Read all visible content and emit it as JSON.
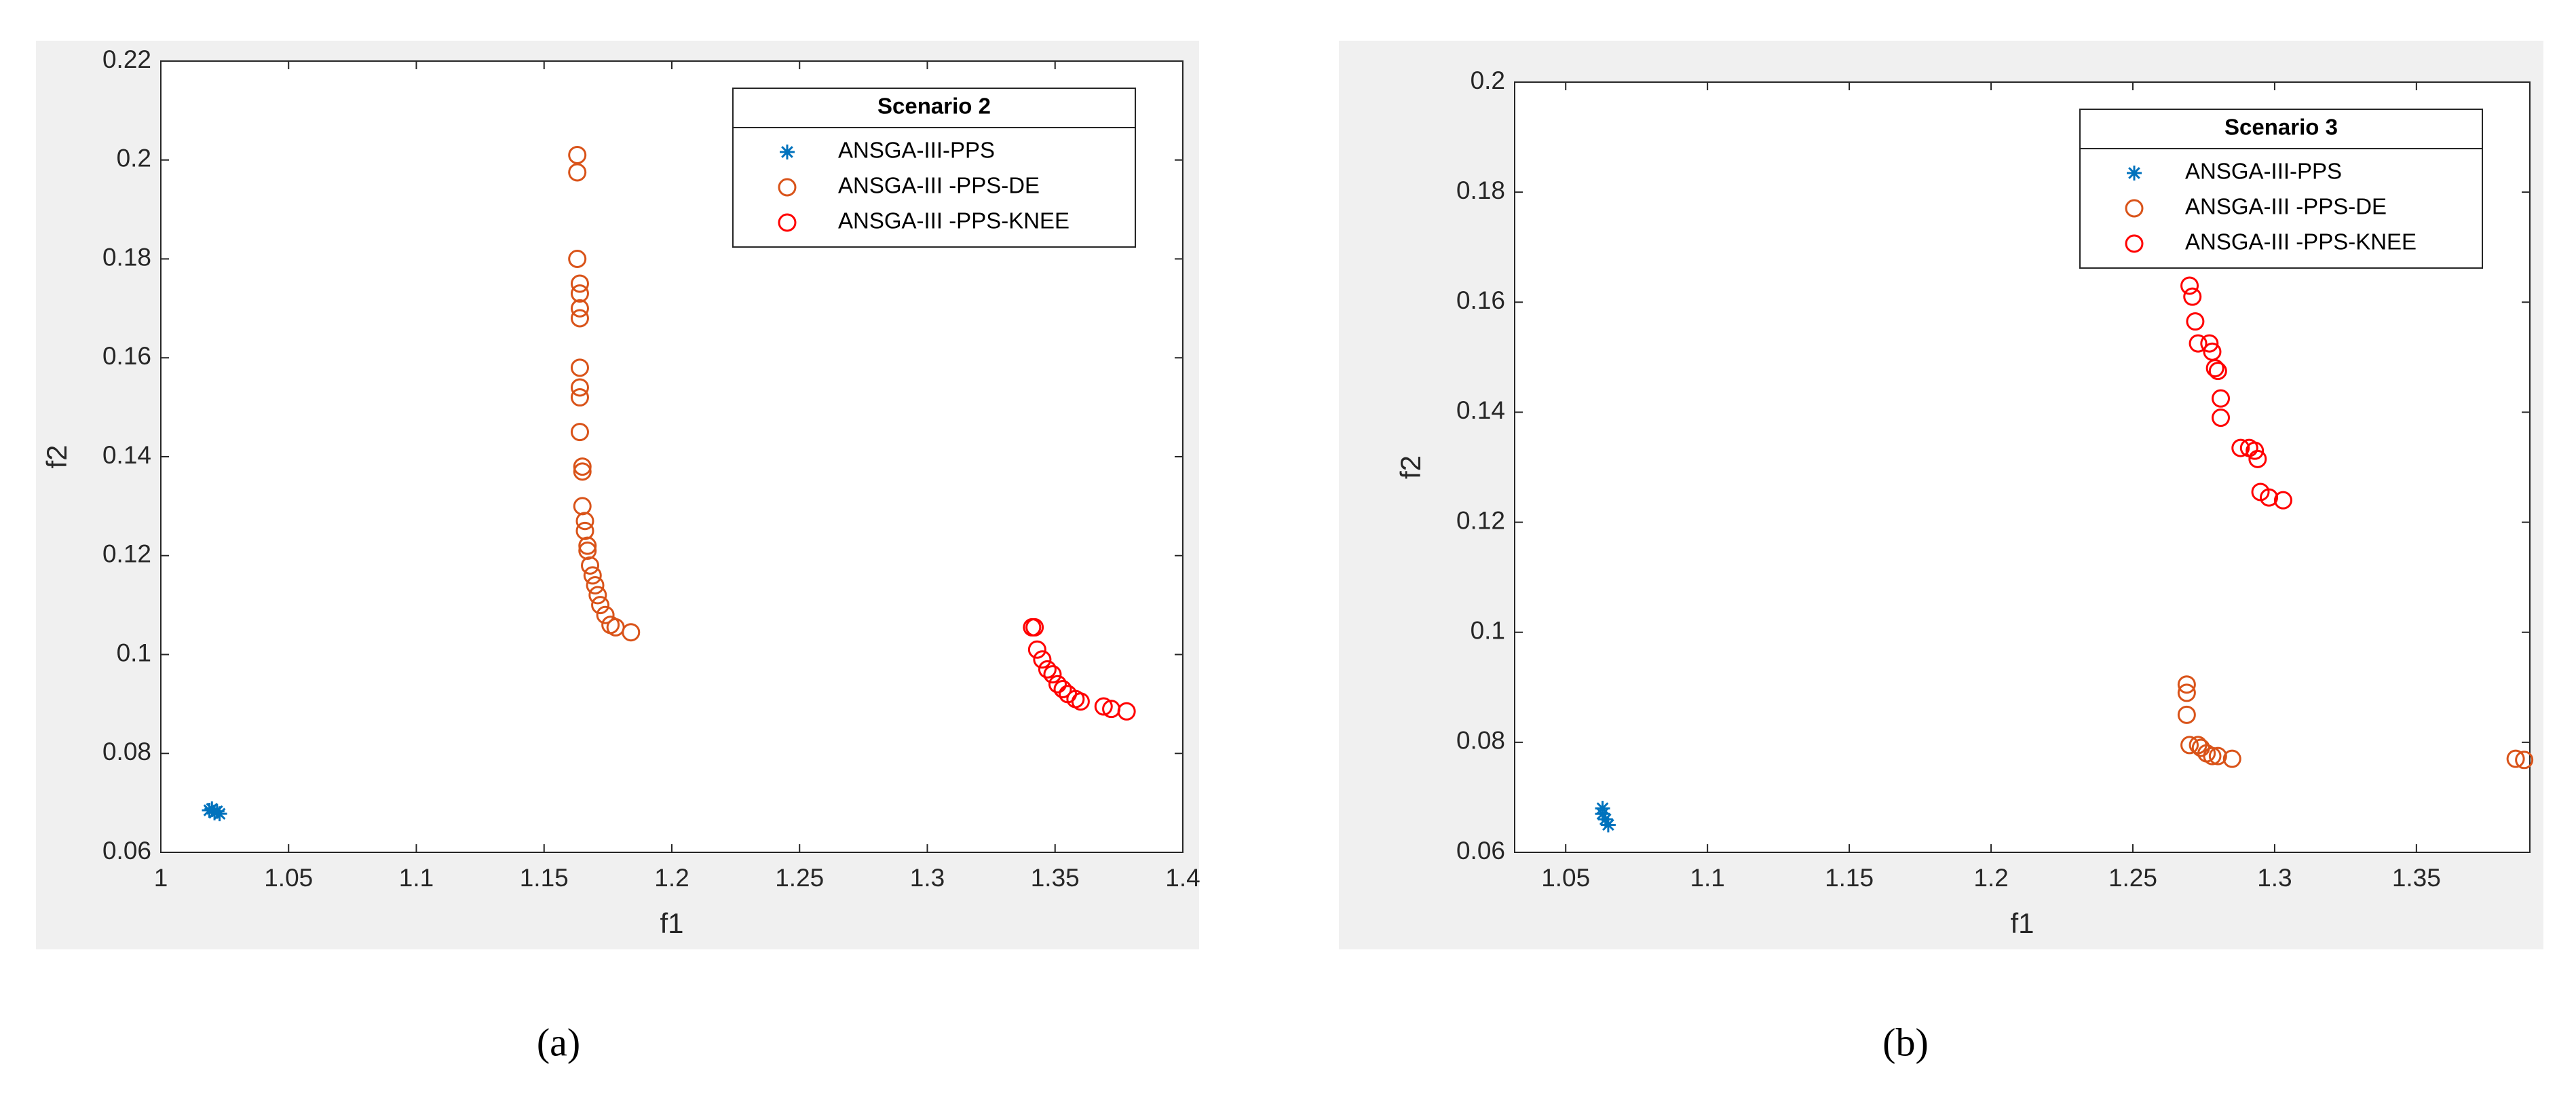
{
  "chart_data": [
    {
      "type": "scatter",
      "xlabel": "f1",
      "ylabel": "f2",
      "legend_title": "Scenario 2",
      "legend": "northeast",
      "caption": "(a)",
      "xlim": [
        1,
        1.4
      ],
      "ylim": [
        0.06,
        0.22
      ],
      "xticks": [
        1,
        1.05,
        1.1,
        1.15,
        1.2,
        1.25,
        1.3,
        1.35,
        1.4
      ],
      "yticks": [
        0.06,
        0.08,
        0.1,
        0.12,
        0.14,
        0.16,
        0.18,
        0.2,
        0.22
      ],
      "series": [
        {
          "name": "ANSGA-III-PPS",
          "color": "#0072BD",
          "marker": "star",
          "x": [
            1.019,
            1.021,
            1.022,
            1.023,
            1.02
          ],
          "y": [
            0.0685,
            0.068,
            0.0683,
            0.0678,
            0.0688
          ]
        },
        {
          "name": "ANSGA-III -PPS-DE",
          "color": "#D95319",
          "marker": "circle",
          "x": [
            1.163,
            1.163,
            1.163,
            1.164,
            1.164,
            1.164,
            1.164,
            1.164,
            1.164,
            1.164,
            1.164,
            1.165,
            1.165,
            1.165,
            1.166,
            1.166,
            1.167,
            1.167,
            1.168,
            1.169,
            1.17,
            1.171,
            1.172,
            1.174,
            1.176,
            1.178,
            1.184
          ],
          "y": [
            0.201,
            0.1975,
            0.18,
            0.175,
            0.173,
            0.17,
            0.168,
            0.158,
            0.154,
            0.152,
            0.145,
            0.138,
            0.137,
            0.13,
            0.127,
            0.125,
            0.122,
            0.121,
            0.118,
            0.116,
            0.114,
            0.112,
            0.11,
            0.108,
            0.106,
            0.1055,
            0.1045
          ]
        },
        {
          "name": "ANSGA-III -PPS-KNEE",
          "color": "#FF0000",
          "marker": "circle",
          "x": [
            1.341,
            1.342,
            1.343,
            1.345,
            1.347,
            1.349,
            1.351,
            1.353,
            1.355,
            1.358,
            1.36,
            1.369,
            1.372,
            1.378
          ],
          "y": [
            0.1055,
            0.1055,
            0.101,
            0.099,
            0.097,
            0.096,
            0.094,
            0.093,
            0.092,
            0.091,
            0.0905,
            0.0895,
            0.089,
            0.0885
          ]
        }
      ]
    },
    {
      "type": "scatter",
      "xlabel": "f1",
      "ylabel": "f2",
      "legend_title": "Scenario 3",
      "legend": "northeast",
      "caption": "(b)",
      "xlim": [
        1.032,
        1.39
      ],
      "ylim": [
        0.06,
        0.2
      ],
      "xticks": [
        1.05,
        1.1,
        1.15,
        1.2,
        1.25,
        1.3,
        1.35
      ],
      "yticks": [
        0.06,
        0.08,
        0.1,
        0.12,
        0.14,
        0.16,
        0.18,
        0.2
      ],
      "series": [
        {
          "name": "ANSGA-III-PPS",
          "color": "#0072BD",
          "marker": "star",
          "x": [
            1.063,
            1.064,
            1.065,
            1.063
          ],
          "y": [
            0.068,
            0.066,
            0.065,
            0.067
          ]
        },
        {
          "name": "ANSGA-III -PPS-DE",
          "color": "#D95319",
          "marker": "circle",
          "x": [
            1.269,
            1.269,
            1.269,
            1.27,
            1.273,
            1.274,
            1.276,
            1.278,
            1.28,
            1.285,
            1.385,
            1.388
          ],
          "y": [
            0.0905,
            0.089,
            0.085,
            0.0795,
            0.0795,
            0.079,
            0.078,
            0.0775,
            0.0775,
            0.077,
            0.077,
            0.0768
          ]
        },
        {
          "name": "ANSGA-III -PPS-KNEE",
          "color": "#FF0000",
          "marker": "circle",
          "x": [
            1.27,
            1.271,
            1.272,
            1.273,
            1.277,
            1.278,
            1.279,
            1.28,
            1.281,
            1.281,
            1.288,
            1.291,
            1.293,
            1.294,
            1.295,
            1.298,
            1.303
          ],
          "y": [
            0.163,
            0.161,
            0.1565,
            0.1525,
            0.1525,
            0.151,
            0.148,
            0.1475,
            0.1425,
            0.139,
            0.1335,
            0.1335,
            0.133,
            0.1315,
            0.1255,
            0.1245,
            0.124
          ]
        }
      ]
    }
  ]
}
